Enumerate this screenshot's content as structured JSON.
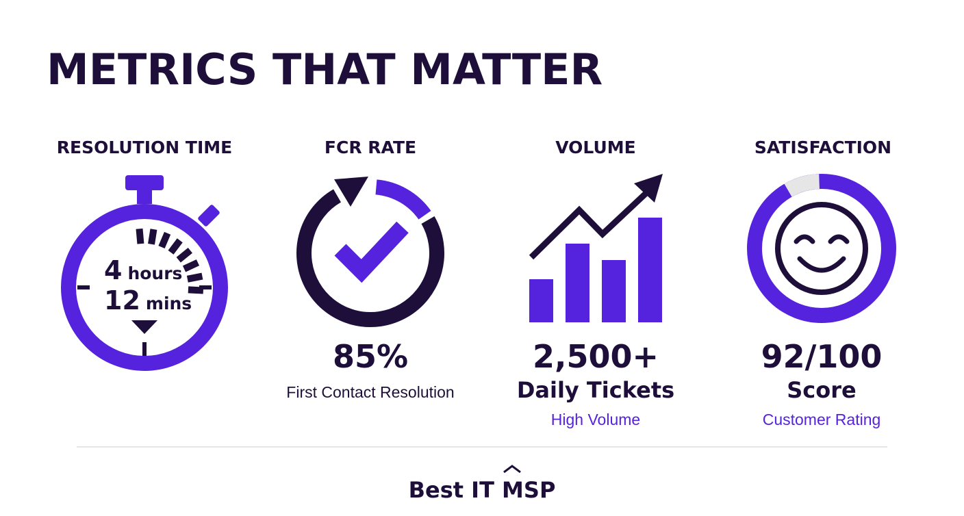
{
  "header": {
    "title": "METRICS THAT MATTER"
  },
  "metrics": [
    {
      "heading": "RESOLUTION TIME",
      "value_parts": [
        {
          "number": "4",
          "unit": "hours"
        },
        {
          "number": "12",
          "unit": "mins"
        }
      ]
    },
    {
      "heading": "FCR RATE",
      "value": "85%",
      "caption": "First Contact Resolution"
    },
    {
      "heading": "VOLUME",
      "value": "2,500+",
      "caption": "Daily Tickets",
      "note": "High Volume"
    },
    {
      "heading": "SATISFACTION",
      "value": "92/100",
      "caption": "Score",
      "note": "Customer Rating"
    }
  ],
  "footer": {
    "brand": "Best IT MSP"
  }
}
